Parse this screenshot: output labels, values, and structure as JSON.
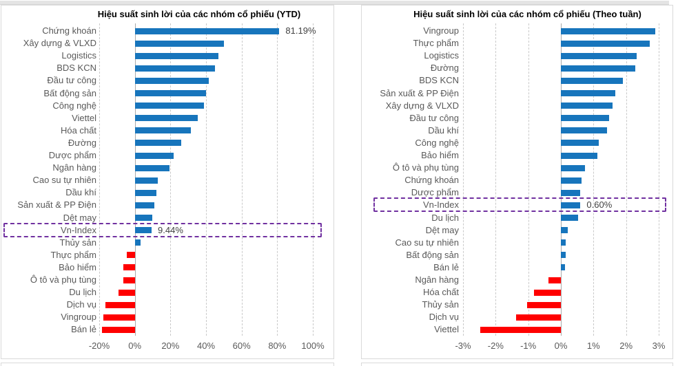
{
  "chart_data": [
    {
      "type": "bar",
      "orientation": "horizontal",
      "title": "Hiệu suất sinh lời của các nhóm cổ phiếu (YTD)",
      "xlim": [
        -20,
        100
      ],
      "grid": "dashed-vertical",
      "colors": {
        "positive": "#1775bc",
        "negative": "#ff0000",
        "highlight_box": "#7030a0"
      },
      "x_ticks": [
        {
          "value": -20,
          "label": "-20%"
        },
        {
          "value": 0,
          "label": "0%"
        },
        {
          "value": 20,
          "label": "20%"
        },
        {
          "value": 40,
          "label": "40%"
        },
        {
          "value": 60,
          "label": "60%"
        },
        {
          "value": 80,
          "label": "80%"
        },
        {
          "value": 100,
          "label": "100%"
        }
      ],
      "points": [
        {
          "category": "Chứng khoán",
          "value": 81.19,
          "label": "81.19%"
        },
        {
          "category": "Xây dựng & VLXD",
          "value": 50
        },
        {
          "category": "Logistics",
          "value": 47
        },
        {
          "category": "BDS KCN",
          "value": 45
        },
        {
          "category": "Đầu tư công",
          "value": 41.5
        },
        {
          "category": "Bất động sản",
          "value": 40
        },
        {
          "category": "Công nghệ",
          "value": 39
        },
        {
          "category": "Viettel",
          "value": 35.5
        },
        {
          "category": "Hóa chất",
          "value": 31.5
        },
        {
          "category": "Đường",
          "value": 26
        },
        {
          "category": "Dược phẩm",
          "value": 22
        },
        {
          "category": "Ngân hàng",
          "value": 19.5
        },
        {
          "category": "Cao su tự nhiên",
          "value": 12.8
        },
        {
          "category": "Dầu khí",
          "value": 12.2
        },
        {
          "category": "Sản xuất & PP Điện",
          "value": 11
        },
        {
          "category": "Dệt may",
          "value": 9.8
        },
        {
          "category": "Vn-Index",
          "value": 9.44,
          "label": "9.44%",
          "highlight": true
        },
        {
          "category": "Thủy sản",
          "value": 3.4
        },
        {
          "category": "Thực phẩm",
          "value": -4.4
        },
        {
          "category": "Bảo hiểm",
          "value": -6.3
        },
        {
          "category": "Ô tô và phụ tùng",
          "value": -6.4
        },
        {
          "category": "Du lịch",
          "value": -9.3
        },
        {
          "category": "Dịch vụ",
          "value": -16.4
        },
        {
          "category": "Vingroup",
          "value": -17.7
        },
        {
          "category": "Bán lẻ",
          "value": -18.6
        }
      ]
    },
    {
      "type": "bar",
      "orientation": "horizontal",
      "title": "Hiệu suất sinh lời của các nhóm cổ phiếu (Theo tuần)",
      "xlim": [
        -3,
        3
      ],
      "grid": "dashed-vertical",
      "colors": {
        "positive": "#1775bc",
        "negative": "#ff0000",
        "highlight_box": "#7030a0"
      },
      "x_ticks": [
        {
          "value": -3,
          "label": "-3%"
        },
        {
          "value": -2,
          "label": "-2%"
        },
        {
          "value": -1,
          "label": "-1%"
        },
        {
          "value": 0,
          "label": "0%"
        },
        {
          "value": 1,
          "label": "1%"
        },
        {
          "value": 2,
          "label": "2%"
        },
        {
          "value": 3,
          "label": "3%"
        }
      ],
      "points": [
        {
          "category": "Vingroup",
          "value": 2.9
        },
        {
          "category": "Thực phẩm",
          "value": 2.72
        },
        {
          "category": "Logistics",
          "value": 2.33
        },
        {
          "category": "Đường",
          "value": 2.29
        },
        {
          "category": "BDS KCN",
          "value": 1.9
        },
        {
          "category": "Sản xuất & PP Điện",
          "value": 1.67
        },
        {
          "category": "Xây dựng & VLXD",
          "value": 1.59
        },
        {
          "category": "Đầu tư công",
          "value": 1.48
        },
        {
          "category": "Dầu khí",
          "value": 1.41
        },
        {
          "category": "Công nghệ",
          "value": 1.16
        },
        {
          "category": "Bảo hiểm",
          "value": 1.12
        },
        {
          "category": "Ô tô và phụ tùng",
          "value": 0.74
        },
        {
          "category": "Chứng khoán",
          "value": 0.64
        },
        {
          "category": "Dược phẩm",
          "value": 0.6
        },
        {
          "category": "Vn-Index",
          "value": 0.6,
          "label": "0.60%",
          "highlight": true
        },
        {
          "category": "Du lịch",
          "value": 0.53
        },
        {
          "category": "Dệt may",
          "value": 0.22
        },
        {
          "category": "Cao su tự nhiên",
          "value": 0.15
        },
        {
          "category": "Bất động sản",
          "value": 0.15
        },
        {
          "category": "Bán lẻ",
          "value": 0.13
        },
        {
          "category": "Ngân hàng",
          "value": -0.38
        },
        {
          "category": "Hóa chất",
          "value": -0.82
        },
        {
          "category": "Thủy sản",
          "value": -1.03
        },
        {
          "category": "Dịch vụ",
          "value": -1.37
        },
        {
          "category": "Viettel",
          "value": -2.47
        }
      ]
    }
  ]
}
